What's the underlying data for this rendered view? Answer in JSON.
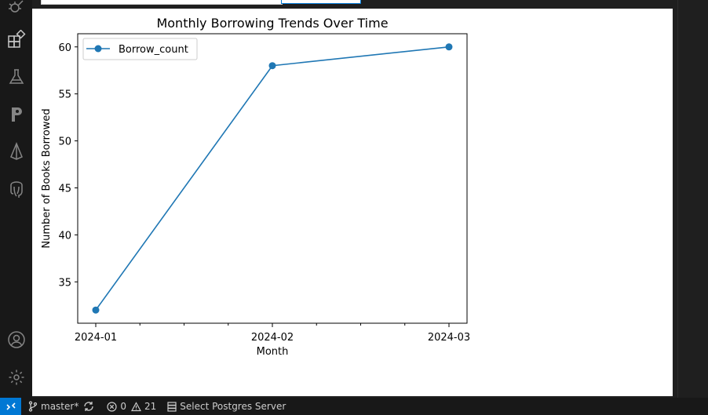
{
  "activity_bar": {
    "icons": [
      "debug-icon",
      "extensions-icon",
      "testing-icon",
      "postman-icon",
      "prisma-icon",
      "postgres-icon",
      "account-icon",
      "settings-gear-icon"
    ]
  },
  "chart_data": {
    "type": "line",
    "title": "Monthly Borrowing Trends Over Time",
    "xlabel": "Month",
    "ylabel": "Number of Books Borrowed",
    "x": [
      "2024-01",
      "2024-02",
      "2024-03"
    ],
    "series": [
      {
        "name": "Borrow_count",
        "values": [
          32,
          58,
          60
        ],
        "color": "#1f77b4",
        "marker": "circle"
      }
    ],
    "xtick_labels": [
      "2024-01",
      "2024-02",
      "2024-03"
    ],
    "yticks": [
      35,
      40,
      45,
      50,
      55,
      60
    ],
    "yticks_text": [
      "35",
      "40",
      "45",
      "50",
      "55",
      "60"
    ],
    "ylim": [
      30.6,
      61.4
    ],
    "minor_xticks_between": 3,
    "grid": false,
    "legend": "upper-left"
  },
  "status_bar": {
    "branch": "master*",
    "errors": "0",
    "warnings": "21",
    "postgres": "Select Postgres Server",
    "remote_color": "#0078d4"
  }
}
